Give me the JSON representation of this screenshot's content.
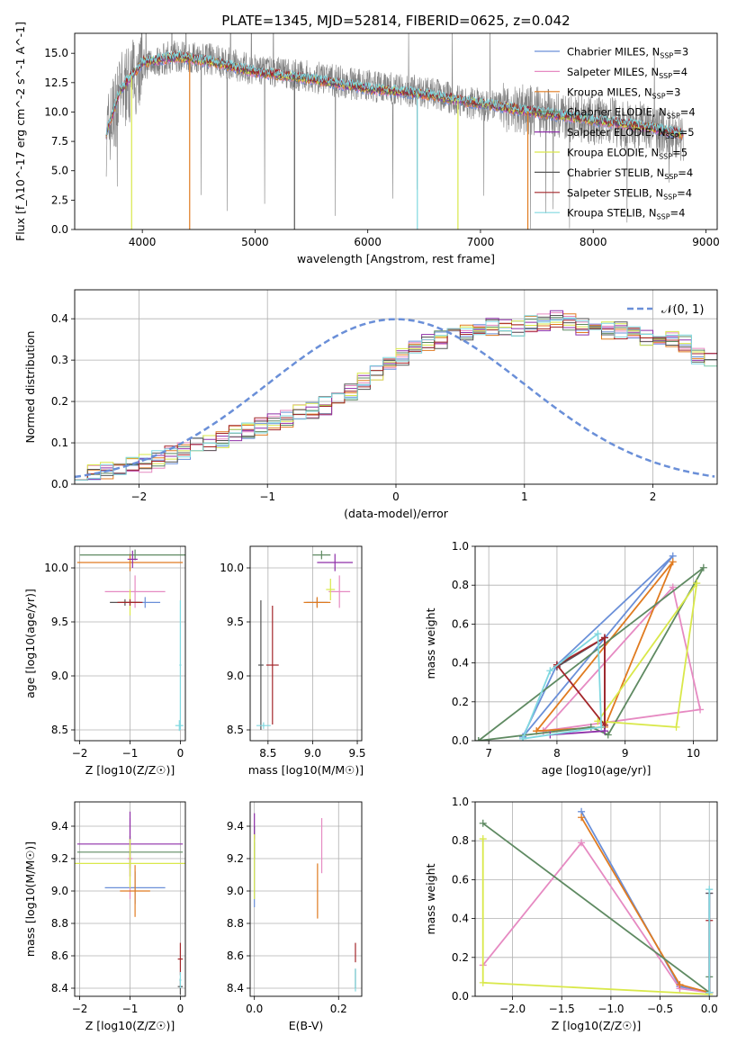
{
  "figure_title": "PLATE=1345, MJD=52814, FIBERID=0625, z=0.042",
  "colors": [
    "#6a8fd8",
    "#e68ac2",
    "#e07b20",
    "#5f8a62",
    "#8e2fa8",
    "#d9e84a",
    "#555555",
    "#a3262a",
    "#80d8e0"
  ],
  "legend_labels": [
    "Chabrier MILES, N_SSP=3",
    "Salpeter MILES, N_SSP=4",
    "Kroupa MILES, N_SSP=3",
    "Chabrier ELODIE, N_SSP=4",
    "Salpeter ELODIE, N_SSP=5",
    "Kroupa ELODIE, N_SSP=5",
    "Chabrier STELIB, N_SSP=4",
    "Salpeter STELIB, N_SSP=4",
    "Kroupa STELIB, N_SSP=4"
  ],
  "chart_data": [
    {
      "id": "spectrum",
      "type": "line",
      "title": "PLATE=1345, MJD=52814, FIBERID=0625, z=0.042",
      "xlabel": "wavelength [Angstrom, rest frame]",
      "ylabel": "Flux [f_λ10^-17 erg cm^-2 s^-1 A^-1]",
      "xlim": [
        3400,
        9100
      ],
      "ylim": [
        0,
        16.7
      ],
      "xticks": [
        4000,
        5000,
        6000,
        7000,
        8000,
        9000
      ],
      "yticks": [
        0.0,
        2.5,
        5.0,
        7.5,
        10.0,
        12.5,
        15.0
      ],
      "grid": false,
      "legend_position": "upper right",
      "observed_flux_anchor": {
        "x": [
          3680,
          3800,
          4000,
          4300,
          4600,
          5000,
          5500,
          6000,
          6500,
          7000,
          7400,
          8000,
          8500,
          8800
        ],
        "y": [
          8.0,
          11.5,
          14.0,
          14.8,
          14.5,
          13.6,
          13.0,
          12.2,
          11.7,
          10.6,
          10.2,
          9.3,
          8.6,
          7.8
        ]
      },
      "model_flux_anchor": {
        "x": [
          3680,
          3800,
          4000,
          4300,
          4600,
          5000,
          5500,
          6000,
          6500,
          7000,
          7400,
          8000,
          8500,
          8800
        ],
        "y": [
          8.2,
          11.8,
          14.2,
          14.7,
          14.3,
          13.4,
          12.8,
          12.0,
          11.5,
          10.7,
          10.1,
          9.3,
          8.7,
          8.1
        ]
      },
      "masked_dips": [
        3905,
        4420,
        5350,
        6440,
        6800,
        7420
      ],
      "series": [
        {
          "name": "Chabrier MILES, N_SSP=3"
        },
        {
          "name": "Salpeter MILES, N_SSP=4"
        },
        {
          "name": "Kroupa MILES, N_SSP=3"
        },
        {
          "name": "Chabrier ELODIE, N_SSP=4"
        },
        {
          "name": "Salpeter ELODIE, N_SSP=5"
        },
        {
          "name": "Kroupa ELODIE, N_SSP=5"
        },
        {
          "name": "Chabrier STELIB, N_SSP=4"
        },
        {
          "name": "Salpeter STELIB, N_SSP=4"
        },
        {
          "name": "Kroupa STELIB, N_SSP=4"
        }
      ]
    },
    {
      "id": "residuals",
      "type": "line",
      "xlabel": "(data-model)/error",
      "ylabel": "Normed distribution",
      "xlim": [
        -2.5,
        2.5
      ],
      "ylim": [
        0,
        0.47
      ],
      "xticks": [
        -2,
        -1,
        0,
        1,
        2
      ],
      "yticks": [
        0.0,
        0.1,
        0.2,
        0.3,
        0.4
      ],
      "grid": true,
      "legend_position": "upper right",
      "legend_label": "𝒩(0, 1)",
      "bin_width": 0.1,
      "base_heights": [
        0.025,
        0.03,
        0.035,
        0.04,
        0.045,
        0.05,
        0.06,
        0.07,
        0.08,
        0.09,
        0.1,
        0.11,
        0.12,
        0.13,
        0.14,
        0.15,
        0.16,
        0.17,
        0.18,
        0.19,
        0.2,
        0.22,
        0.25,
        0.27,
        0.29,
        0.31,
        0.33,
        0.34,
        0.35,
        0.36,
        0.37,
        0.38,
        0.38,
        0.38,
        0.38,
        0.39,
        0.39,
        0.4,
        0.39,
        0.38,
        0.38,
        0.37,
        0.37,
        0.36,
        0.35,
        0.35,
        0.35,
        0.34,
        0.31,
        0.3,
        0.28,
        0.27,
        0.25,
        0.23,
        0.22,
        0.19,
        0.17,
        0.16,
        0.15,
        0.13,
        0.11,
        0.1,
        0.09,
        0.08,
        0.07,
        0.06,
        0.055,
        0.05,
        0.045,
        0.04,
        0.035,
        0.03,
        0.03,
        0.03,
        0.03,
        0.03,
        0.03,
        0.03,
        0.03,
        0.03,
        0.03,
        0.03,
        0.03,
        0.03,
        0.03,
        0.03,
        0.03,
        0.03,
        0.03,
        0.03,
        0.03,
        0.03,
        0.03,
        0.03,
        0.03,
        0.03,
        0.03,
        0.03,
        0.03,
        0.03
      ],
      "gaussian": {
        "mu": 0,
        "sigma": 1
      }
    },
    {
      "id": "Z_age",
      "type": "scatter",
      "xlabel": "Z [log10(Z/Z☉)]",
      "ylabel": "age  [log10(age/yr)]",
      "xlim": [
        -2.1,
        0.1
      ],
      "ylim": [
        8.4,
        10.2
      ],
      "xticks": [
        -2,
        -1,
        0
      ],
      "yticks": [
        8.5,
        9.0,
        9.5,
        10.0
      ],
      "grid": true,
      "errorbars": [
        {
          "series": 0,
          "x": -0.7,
          "y": 9.68,
          "xerr": 0.3,
          "yerr": 0.05
        },
        {
          "series": 1,
          "x": -0.9,
          "y": 9.78,
          "xerr": 0.6,
          "yerr": 0.15
        },
        {
          "series": 2,
          "x": -1.0,
          "y": 10.05,
          "xerr": 1.05,
          "yerr": 0.08
        },
        {
          "series": 3,
          "x": -0.9,
          "y": 10.12,
          "xerr": 1.1,
          "yerr": 0.05
        },
        {
          "series": 4,
          "x": -0.95,
          "y": 10.08,
          "xerr": 0.1,
          "yerr": 0.08
        },
        {
          "series": 5,
          "x": -1.0,
          "y": 9.68,
          "xerr": 0.2,
          "yerr": 0.12
        },
        {
          "series": 6,
          "x": -1.1,
          "y": 9.68,
          "xerr": 0.3,
          "yerr": 0.03
        },
        {
          "series": 7,
          "x": -1.0,
          "y": 9.68,
          "xerr": 0.25,
          "yerr": 0.03
        },
        {
          "series": 8,
          "x": -0.02,
          "y": 8.54,
          "xerr": 0.08,
          "yerr": 0.05
        },
        {
          "series": 8,
          "x": 0.0,
          "y": 9.1,
          "xerr": 0.02,
          "yerr": 0.6
        }
      ]
    },
    {
      "id": "mass_age",
      "type": "scatter",
      "xlabel": "mass [log10(M/M☉)]",
      "ylabel": "",
      "xlim": [
        8.3,
        9.55
      ],
      "ylim": [
        8.4,
        10.2
      ],
      "xticks": [
        8.5,
        9.0,
        9.5
      ],
      "yticks": [
        8.5,
        9.0,
        9.5,
        10.0
      ],
      "grid": true,
      "errorbars": [
        {
          "series": 0,
          "x": 9.05,
          "y": 9.68,
          "xerr": 0.12,
          "yerr": 0.04
        },
        {
          "series": 1,
          "x": 9.3,
          "y": 9.78,
          "xerr": 0.12,
          "yerr": 0.15
        },
        {
          "series": 2,
          "x": 9.05,
          "y": 9.68,
          "xerr": 0.15,
          "yerr": 0.05
        },
        {
          "series": 3,
          "x": 9.1,
          "y": 10.12,
          "xerr": 0.1,
          "yerr": 0.04
        },
        {
          "series": 4,
          "x": 9.25,
          "y": 10.05,
          "xerr": 0.2,
          "yerr": 0.08
        },
        {
          "series": 5,
          "x": 9.2,
          "y": 9.8,
          "xerr": 0.05,
          "yerr": 0.1
        },
        {
          "series": 6,
          "x": 8.42,
          "y": 9.1,
          "xerr": 0.03,
          "yerr": 0.6
        },
        {
          "series": 7,
          "x": 8.55,
          "y": 9.1,
          "xerr": 0.07,
          "yerr": 0.55
        },
        {
          "series": 8,
          "x": 8.45,
          "y": 8.54,
          "xerr": 0.08,
          "yerr": 0.03
        }
      ]
    },
    {
      "id": "age_weight",
      "type": "line",
      "xlabel": "age  [log10(age/yr)]",
      "ylabel": "mass weight",
      "xlim": [
        6.8,
        10.35
      ],
      "ylim": [
        0,
        1.0
      ],
      "xticks": [
        7,
        8,
        9,
        10
      ],
      "yticks": [
        0.0,
        0.2,
        0.4,
        0.6,
        0.8,
        1.0
      ],
      "grid": true,
      "series": [
        {
          "name": "Chabrier MILES, N_SSP=3",
          "x": [
            7.5,
            8.0,
            9.7,
            7.5
          ],
          "y": [
            0.02,
            0.39,
            0.95,
            0.02
          ]
        },
        {
          "name": "Salpeter MILES, N_SSP=4",
          "x": [
            7.8,
            9.7,
            10.1,
            7.8
          ],
          "y": [
            0.05,
            0.79,
            0.16,
            0.05
          ]
        },
        {
          "name": "Kroupa MILES, N_SSP=3",
          "x": [
            7.7,
            8.7,
            9.7,
            7.7
          ],
          "y": [
            0.05,
            0.07,
            0.92,
            0.05
          ]
        },
        {
          "name": "Chabrier ELODIE, N_SSP=4",
          "x": [
            6.85,
            8.5,
            8.75,
            10.15,
            6.85
          ],
          "y": [
            0.0,
            0.07,
            0.03,
            0.89,
            0.0
          ]
        },
        {
          "name": "Salpeter ELODIE, N_SSP=5",
          "x": [
            7.9,
            8.7,
            8.7,
            8.0
          ],
          "y": [
            0.03,
            0.05,
            0.53,
            0.38
          ]
        },
        {
          "name": "Kroupa ELODIE, N_SSP=5",
          "x": [
            8.6,
            9.75,
            10.05,
            8.6
          ],
          "y": [
            0.1,
            0.07,
            0.81,
            0.1
          ]
        },
        {
          "name": "Chabrier STELIB, N_SSP=4",
          "x": [
            8.0,
            8.7,
            8.7
          ],
          "y": [
            0.38,
            0.53,
            0.08
          ]
        },
        {
          "name": "Salpeter STELIB, N_SSP=4",
          "x": [
            8.0,
            8.7,
            8.7,
            8.0
          ],
          "y": [
            0.39,
            0.53,
            0.08,
            0.39
          ]
        },
        {
          "name": "Kroupa STELIB, N_SSP=4",
          "x": [
            7.5,
            7.9,
            8.6,
            8.65,
            7.5
          ],
          "y": [
            0.01,
            0.36,
            0.55,
            0.07,
            0.01
          ]
        }
      ]
    },
    {
      "id": "Z_mass",
      "type": "scatter",
      "xlabel": "Z [log10(Z/Z☉)]",
      "ylabel": "mass [log10(M/M☉)]",
      "xlim": [
        -2.1,
        0.1
      ],
      "ylim": [
        8.35,
        9.55
      ],
      "xticks": [
        -2,
        -1,
        0
      ],
      "yticks": [
        8.4,
        8.6,
        8.8,
        9.0,
        9.2,
        9.4
      ],
      "grid": true,
      "errorbars": [
        {
          "series": 0,
          "x": -0.9,
          "y": 9.02,
          "xerr": 0.6,
          "yerr": 0.1
        },
        {
          "series": 1,
          "x": -1.0,
          "y": 9.2,
          "xerr": 0.05,
          "yerr": 0.25
        },
        {
          "series": 2,
          "x": -0.9,
          "y": 9.0,
          "xerr": 0.3,
          "yerr": 0.16
        },
        {
          "series": 3,
          "x": -1.0,
          "y": 9.24,
          "xerr": 1.05,
          "yerr": 0.1
        },
        {
          "series": 4,
          "x": -1.0,
          "y": 9.29,
          "xerr": 1.05,
          "yerr": 0.2
        },
        {
          "series": 5,
          "x": -1.0,
          "y": 9.17,
          "xerr": 1.1,
          "yerr": 0.15
        },
        {
          "series": 6,
          "x": 0.0,
          "y": 8.41,
          "xerr": 0.05,
          "yerr": 0.05
        },
        {
          "series": 7,
          "x": 0.0,
          "y": 8.58,
          "xerr": 0.05,
          "yerr": 0.1
        },
        {
          "series": 8,
          "x": 0.0,
          "y": 8.45,
          "xerr": 0.02,
          "yerr": 0.05
        }
      ]
    },
    {
      "id": "EBV_mass",
      "type": "scatter",
      "xlabel": "E(B-V)",
      "ylabel": "",
      "xlim": [
        -0.01,
        0.255
      ],
      "ylim": [
        8.35,
        9.55
      ],
      "xticks": [
        0.0,
        0.2
      ],
      "yticks": [
        8.4,
        8.6,
        8.8,
        9.0,
        9.2,
        9.4
      ],
      "grid": true,
      "errorbars": [
        {
          "series": 0,
          "x": 0.0,
          "y": 9.1,
          "xerr": 0.0,
          "yerr": 0.2
        },
        {
          "series": 1,
          "x": 0.16,
          "y": 9.28,
          "xerr": 0.0,
          "yerr": 0.17
        },
        {
          "series": 2,
          "x": 0.15,
          "y": 9.0,
          "xerr": 0.0,
          "yerr": 0.17
        },
        {
          "series": 3,
          "x": 0.0,
          "y": 9.3,
          "xerr": 0.0,
          "yerr": 0.1
        },
        {
          "series": 4,
          "x": 0.0,
          "y": 9.4,
          "xerr": 0.0,
          "yerr": 0.08
        },
        {
          "series": 5,
          "x": 0.0,
          "y": 9.15,
          "xerr": 0.0,
          "yerr": 0.2
        },
        {
          "series": 6,
          "x": 0.24,
          "y": 8.46,
          "xerr": 0.0,
          "yerr": 0.06
        },
        {
          "series": 7,
          "x": 0.24,
          "y": 8.62,
          "xerr": 0.0,
          "yerr": 0.06
        },
        {
          "series": 8,
          "x": 0.24,
          "y": 8.45,
          "xerr": 0.0,
          "yerr": 0.07
        }
      ]
    },
    {
      "id": "Z_weight",
      "type": "line",
      "xlabel": "Z [log10(Z/Z☉)]",
      "ylabel": "mass weight",
      "xlim": [
        -2.38,
        0.08
      ],
      "ylim": [
        0,
        1.0
      ],
      "xticks": [
        -2.0,
        -1.5,
        -1.0,
        -0.5,
        0.0
      ],
      "yticks": [
        0.0,
        0.2,
        0.4,
        0.6,
        0.8,
        1.0
      ],
      "grid": true,
      "series": [
        {
          "name": "Chabrier MILES, N_SSP=3",
          "x": [
            -1.3,
            -0.3,
            0.0
          ],
          "y": [
            0.95,
            0.05,
            0.02
          ]
        },
        {
          "name": "Salpeter MILES, N_SSP=4",
          "x": [
            -2.3,
            -1.3,
            -0.3,
            0.0
          ],
          "y": [
            0.16,
            0.79,
            0.04,
            0.02
          ]
        },
        {
          "name": "Kroupa MILES, N_SSP=3",
          "x": [
            -1.3,
            -0.3,
            0.0
          ],
          "y": [
            0.92,
            0.06,
            0.02
          ]
        },
        {
          "name": "Chabrier ELODIE, N_SSP=4",
          "x": [
            -2.3,
            0.0,
            0.0
          ],
          "y": [
            0.89,
            0.02,
            0.1
          ]
        },
        {
          "name": "Salpeter ELODIE, N_SSP=5",
          "x": [
            0.0,
            0.0
          ],
          "y": [
            0.02,
            0.53
          ]
        },
        {
          "name": "Kroupa ELODIE, N_SSP=5",
          "x": [
            -2.3,
            -2.3,
            0.0
          ],
          "y": [
            0.81,
            0.07,
            0.01
          ]
        },
        {
          "name": "Chabrier STELIB, N_SSP=4",
          "x": [
            0.0,
            0.0
          ],
          "y": [
            0.02,
            0.53
          ]
        },
        {
          "name": "Salpeter STELIB, N_SSP=4",
          "x": [
            0.0,
            0.0
          ],
          "y": [
            0.02,
            0.39
          ]
        },
        {
          "name": "Kroupa STELIB, N_SSP=4",
          "x": [
            0.0,
            0.0
          ],
          "y": [
            0.02,
            0.55
          ]
        }
      ]
    }
  ]
}
